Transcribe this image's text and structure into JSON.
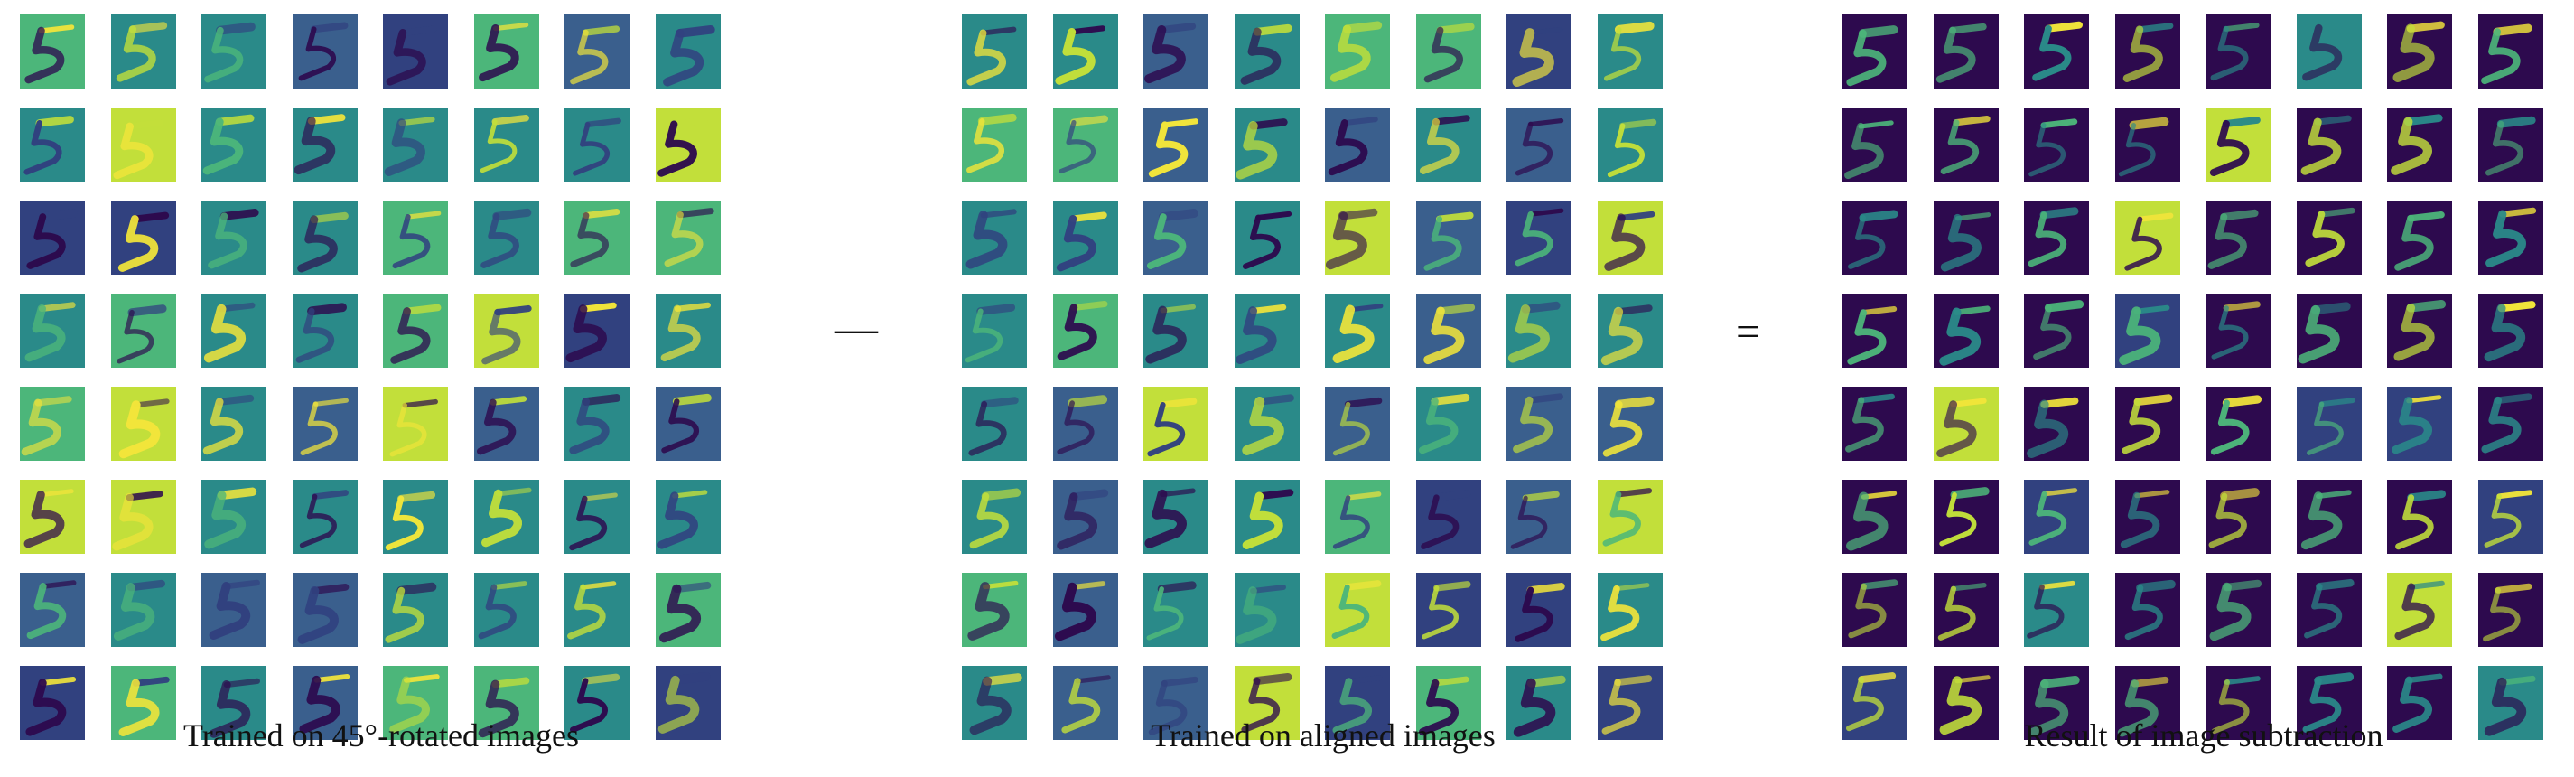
{
  "figure": {
    "panels": [
      {
        "id": "rotated",
        "caption": "Trained on 45°-rotated images",
        "colormap": "viridis-mid",
        "grid": {
          "rows": 8,
          "cols": 8
        }
      },
      {
        "id": "aligned",
        "caption": "Trained on aligned images",
        "colormap": "viridis-mid",
        "grid": {
          "rows": 8,
          "cols": 8
        }
      },
      {
        "id": "difference",
        "caption": "Result of image subtraction",
        "colormap": "viridis-dark",
        "grid": {
          "rows": 8,
          "cols": 8
        }
      }
    ],
    "operators": {
      "minus": "—",
      "equals": "="
    },
    "colors": {
      "viridis_dark": "#2d0a4e",
      "viridis_navy": "#31417f",
      "viridis_blue": "#3a5f8d",
      "viridis_teal": "#2a8a89",
      "viridis_green": "#4cb67a",
      "viridis_lime": "#c2df3a",
      "viridis_yellow": "#f2e53a"
    }
  }
}
